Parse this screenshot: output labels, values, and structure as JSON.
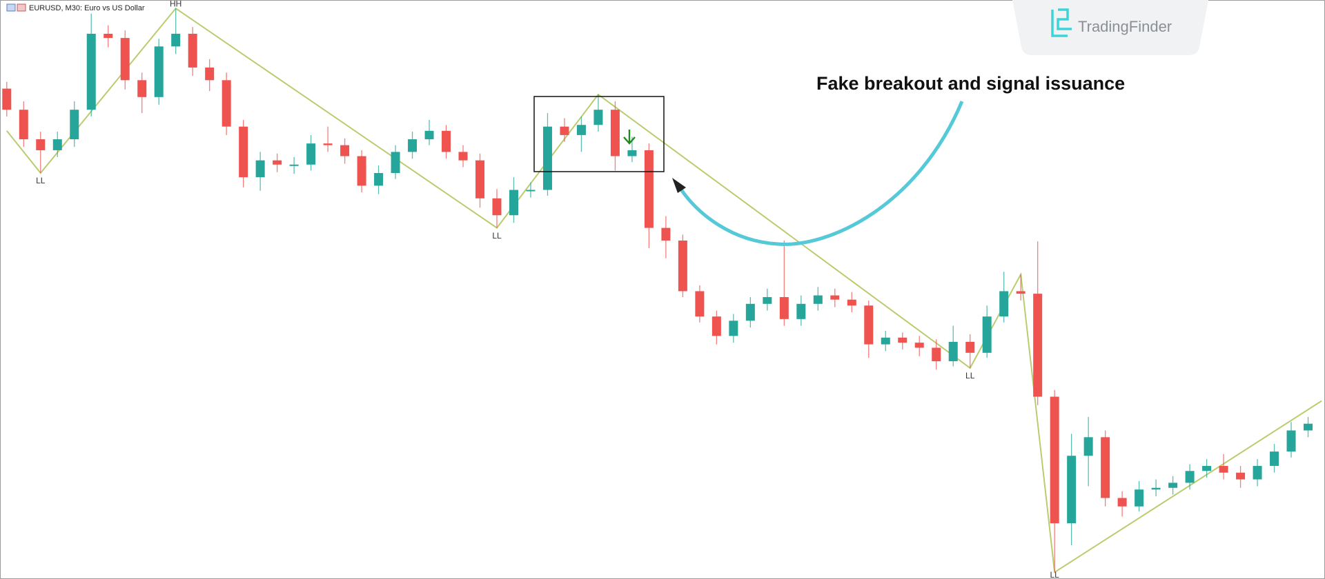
{
  "chart_data": {
    "type": "candlestick",
    "title": "EURUSD, M30: Euro vs US Dollar",
    "annotation": "Fake breakout and signal issuance",
    "watermark": "TradingFinder",
    "up_color": "#26a69a",
    "down_color": "#ef5350",
    "zigzag_color": "#b9cc6e",
    "xlim": [
      -0.4,
      78
    ],
    "ylim": [
      0,
      686
    ],
    "open": [
      581,
      556,
      521,
      508,
      521,
      556,
      646,
      641,
      591,
      571,
      631,
      646,
      606,
      591,
      536,
      476,
      496,
      491,
      491,
      516,
      514,
      501,
      466,
      481,
      506,
      521,
      531,
      506,
      496,
      451,
      431,
      461,
      461,
      536,
      526,
      538,
      556,
      501,
      508,
      416,
      401,
      341,
      311,
      288,
      306,
      326,
      334,
      308,
      326,
      336,
      331,
      324,
      278,
      286,
      280,
      274,
      258,
      281,
      268,
      311,
      341,
      338,
      216,
      66,
      146,
      168,
      96,
      86,
      106,
      108,
      114,
      128,
      134,
      126,
      118,
      134,
      151,
      176
    ],
    "high": [
      589,
      566,
      530,
      530,
      566,
      670,
      656,
      650,
      600,
      640,
      676,
      654,
      616,
      600,
      544,
      506,
      504,
      500,
      526,
      536,
      522,
      508,
      490,
      514,
      530,
      544,
      538,
      514,
      504,
      462,
      476,
      470,
      552,
      546,
      548,
      574,
      566,
      524,
      516,
      430,
      408,
      348,
      318,
      314,
      334,
      344,
      401,
      336,
      346,
      344,
      340,
      330,
      294,
      292,
      288,
      284,
      300,
      290,
      324,
      364,
      361,
      400,
      224,
      172,
      192,
      176,
      104,
      116,
      118,
      122,
      136,
      142,
      148,
      134,
      142,
      160,
      186,
      192
    ],
    "low": [
      548,
      512,
      481,
      500,
      512,
      548,
      630,
      580,
      552,
      562,
      622,
      596,
      578,
      526,
      464,
      460,
      482,
      480,
      484,
      506,
      492,
      458,
      456,
      474,
      498,
      514,
      498,
      488,
      440,
      416,
      422,
      452,
      454,
      518,
      506,
      530,
      484,
      494,
      392,
      380,
      334,
      304,
      278,
      280,
      298,
      318,
      300,
      300,
      318,
      322,
      316,
      262,
      270,
      272,
      264,
      248,
      252,
      250,
      262,
      304,
      330,
      206,
      8,
      40,
      110,
      86,
      74,
      80,
      98,
      100,
      106,
      120,
      118,
      108,
      110,
      126,
      144,
      168
    ],
    "close": [
      556,
      521,
      508,
      521,
      556,
      646,
      641,
      591,
      571,
      631,
      646,
      606,
      591,
      536,
      476,
      496,
      491,
      491,
      516,
      514,
      501,
      466,
      481,
      506,
      521,
      531,
      506,
      496,
      451,
      431,
      461,
      461,
      536,
      526,
      538,
      556,
      501,
      508,
      416,
      401,
      341,
      311,
      288,
      306,
      326,
      334,
      308,
      326,
      336,
      331,
      324,
      278,
      286,
      280,
      274,
      258,
      281,
      268,
      311,
      341,
      338,
      216,
      66,
      146,
      168,
      96,
      86,
      106,
      108,
      114,
      128,
      134,
      126,
      118,
      134,
      151,
      176,
      184
    ],
    "zigzag": [
      {
        "index": 0,
        "value": 531
      },
      {
        "index": 2,
        "value": 481,
        "label": "LL"
      },
      {
        "index": 10,
        "value": 676,
        "label": "HH"
      },
      {
        "index": 29,
        "value": 416,
        "label": "LL"
      },
      {
        "index": 35,
        "value": 574
      },
      {
        "index": 57,
        "value": 250,
        "label": "LL"
      },
      {
        "index": 60,
        "value": 361
      },
      {
        "index": 62,
        "value": 8,
        "label": "LL"
      },
      {
        "index": 77.8,
        "value": 211
      }
    ]
  }
}
